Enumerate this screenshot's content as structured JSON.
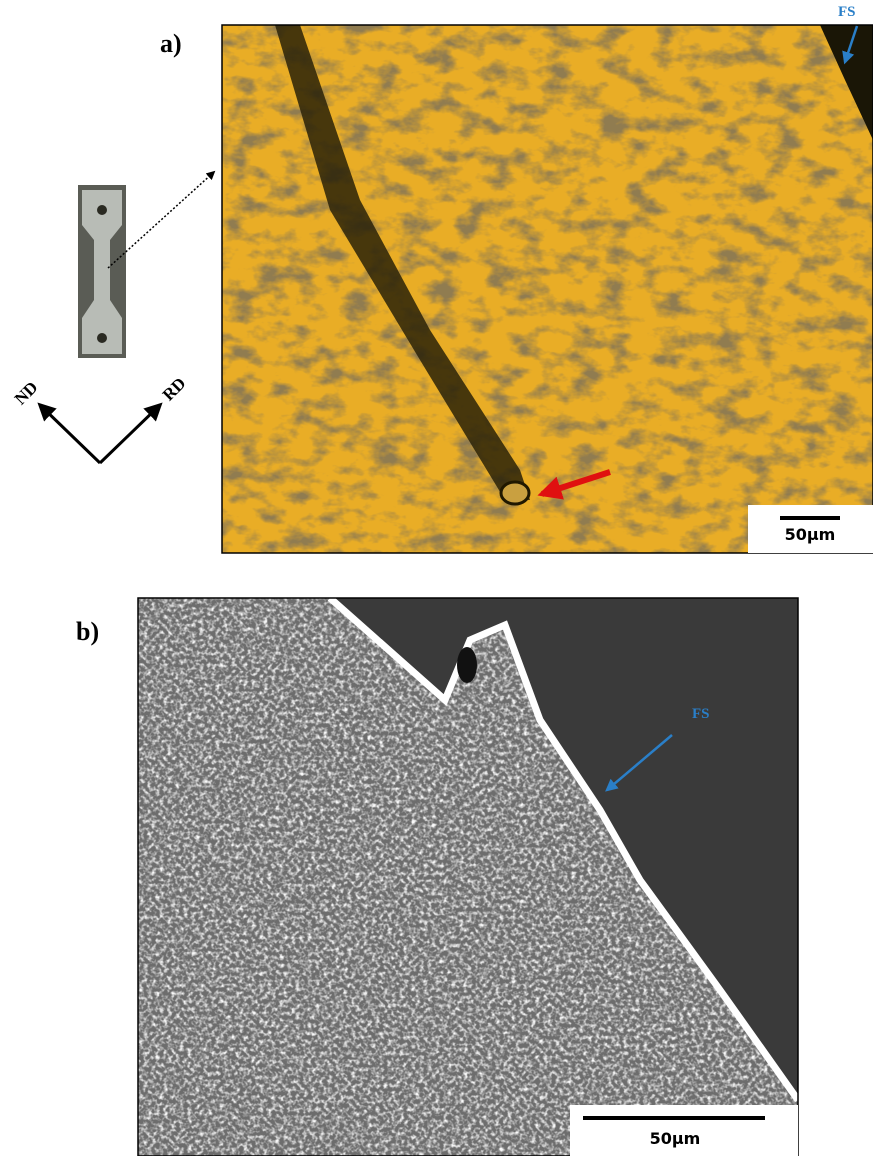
{
  "panel_a": {
    "label": "a)",
    "fs_label": "FS",
    "scale_bar": "50μm",
    "orientation": {
      "nd": "ND",
      "rd": "RD"
    }
  },
  "panel_b": {
    "label": "b)",
    "fs_label": "FS",
    "scale_bar": "50μm"
  }
}
